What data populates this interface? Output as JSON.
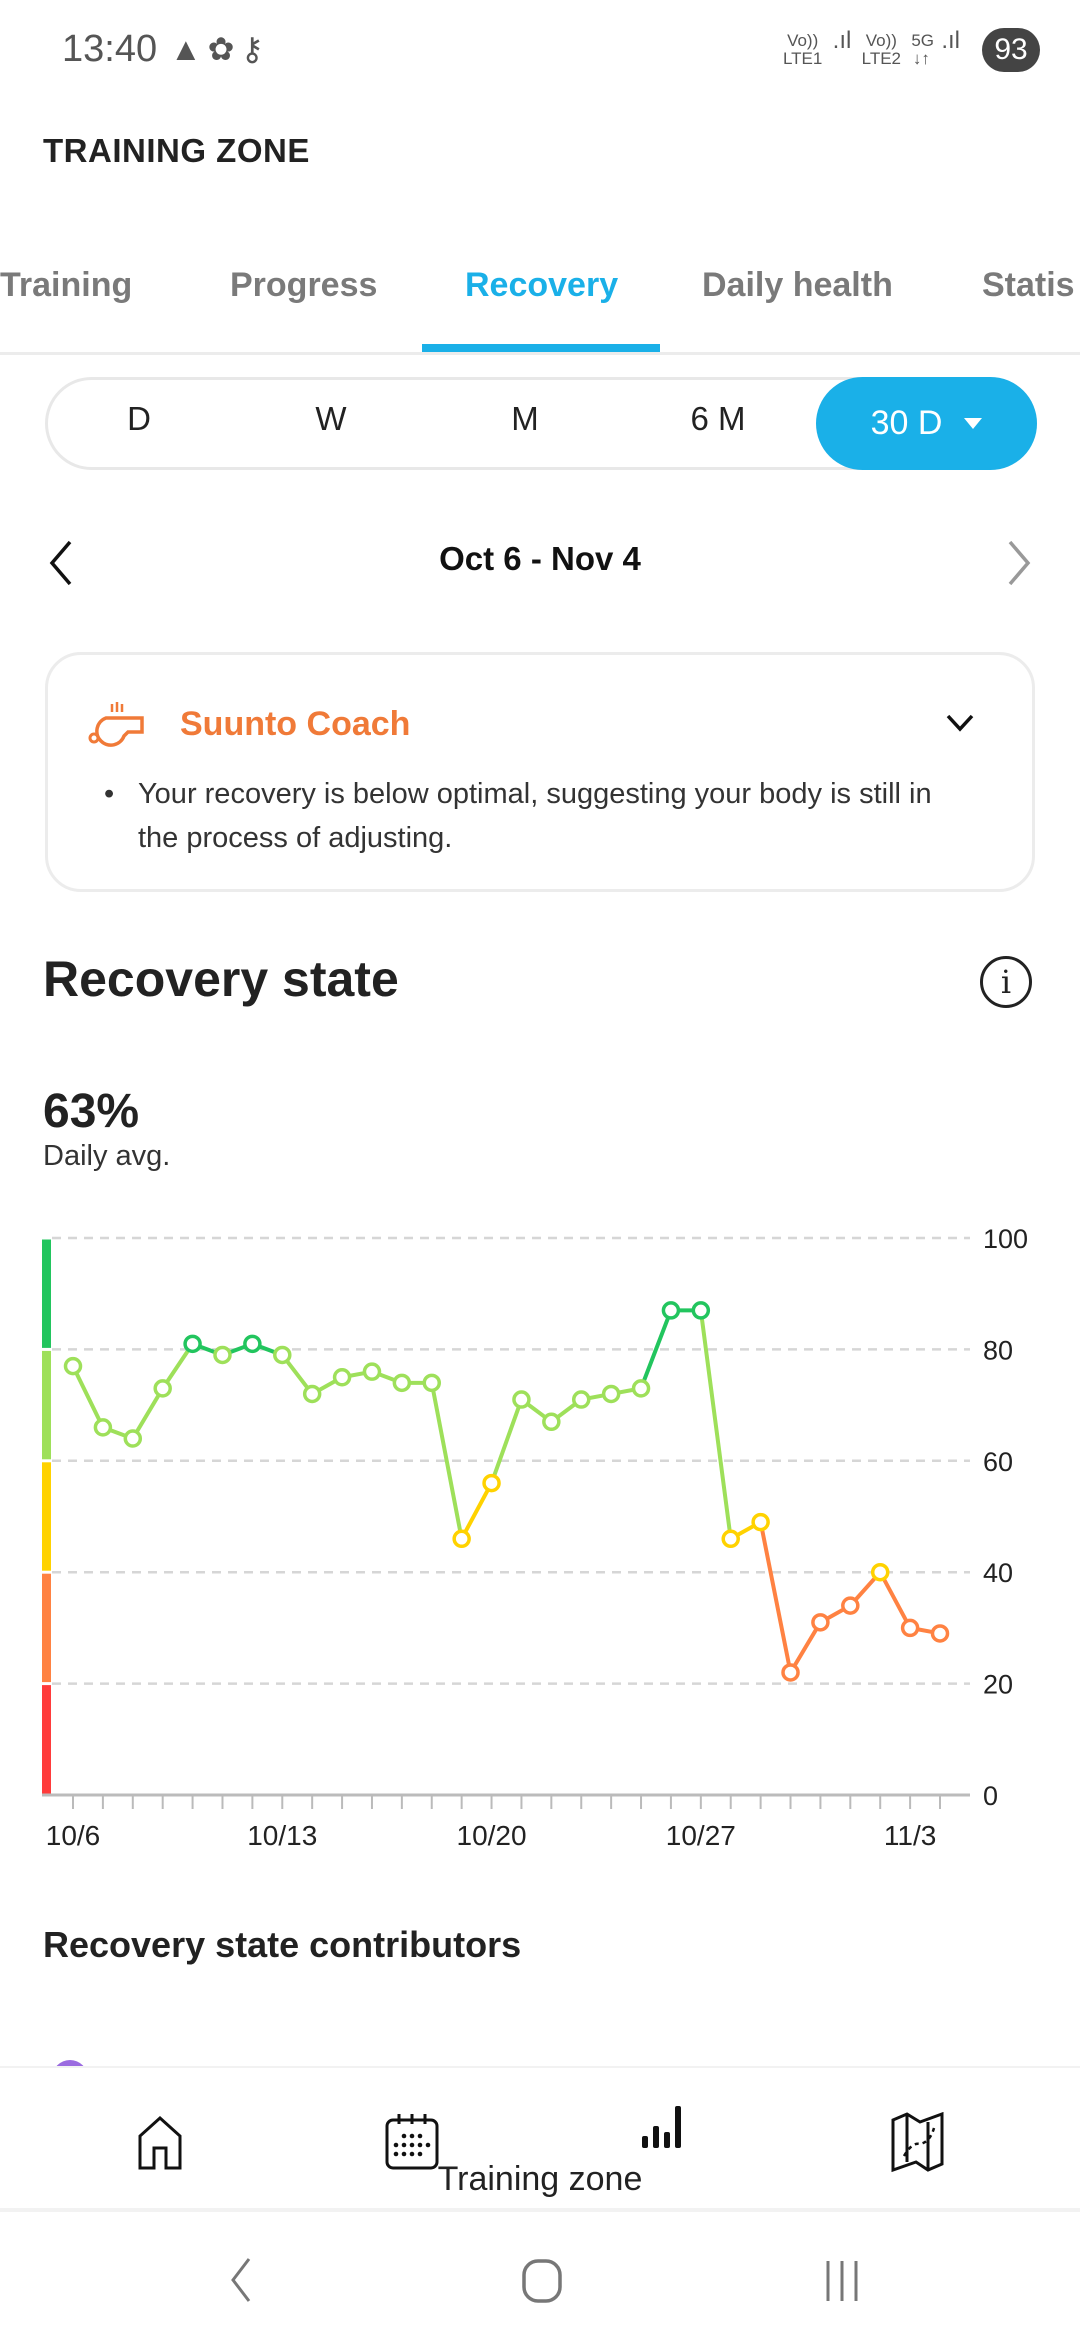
{
  "status_bar": {
    "time": "13:40",
    "net1": "Vo)) LTE1",
    "net2": "Vo)) LTE2",
    "net3": "5G ↓↑",
    "battery": "93"
  },
  "header": {
    "title": "TRAINING ZONE"
  },
  "tabs": [
    {
      "label": "Training"
    },
    {
      "label": "Progress"
    },
    {
      "label": "Recovery",
      "active": true
    },
    {
      "label": "Daily health"
    },
    {
      "label": "Statis"
    }
  ],
  "range": {
    "options": [
      "D",
      "W",
      "M",
      "6 M"
    ],
    "selected": "30 D"
  },
  "date_nav": {
    "label": "Oct 6 - Nov 4"
  },
  "coach": {
    "title": "Suunto Coach",
    "bullet": "•",
    "text": "Your recovery is below optimal, suggesting your body is still in the process of adjusting."
  },
  "recovery": {
    "title": "Recovery state",
    "info": "i",
    "value": "63%",
    "value_label": "Daily avg."
  },
  "chart_data": {
    "type": "line",
    "title": "Recovery state",
    "x": [
      "10/6",
      "10/7",
      "10/8",
      "10/9",
      "10/10",
      "10/11",
      "10/12",
      "10/13",
      "10/14",
      "10/15",
      "10/16",
      "10/17",
      "10/18",
      "10/19",
      "10/20",
      "10/21",
      "10/22",
      "10/23",
      "10/24",
      "10/25",
      "10/26",
      "10/27",
      "10/28",
      "10/29",
      "10/30",
      "10/31",
      "11/1",
      "11/2",
      "11/3",
      "11/4"
    ],
    "values": [
      77,
      66,
      64,
      73,
      81,
      79,
      81,
      79,
      72,
      75,
      76,
      74,
      74,
      46,
      56,
      71,
      67,
      71,
      72,
      73,
      87,
      87,
      46,
      49,
      22,
      31,
      34,
      40,
      30,
      29
    ],
    "x_tick_labels": [
      {
        "i": 0,
        "label": "10/6"
      },
      {
        "i": 7,
        "label": "10/13"
      },
      {
        "i": 14,
        "label": "10/20"
      },
      {
        "i": 21,
        "label": "10/27"
      },
      {
        "i": 28,
        "label": "11/3"
      }
    ],
    "y_ticks": [
      0,
      20,
      40,
      60,
      80,
      100
    ],
    "ylim": [
      0,
      100
    ],
    "grid": true,
    "zones": [
      {
        "from": 80,
        "to": 100,
        "color": "#22c55e"
      },
      {
        "from": 60,
        "to": 80,
        "color": "#9ee05a"
      },
      {
        "from": 40,
        "to": 60,
        "color": "#ffd200"
      },
      {
        "from": 20,
        "to": 40,
        "color": "#ff8242"
      },
      {
        "from": 0,
        "to": 20,
        "color": "#ff3b3b"
      }
    ]
  },
  "contributors": {
    "title": "Recovery state contributors"
  },
  "bottom_nav": {
    "active_label": "Training zone"
  }
}
